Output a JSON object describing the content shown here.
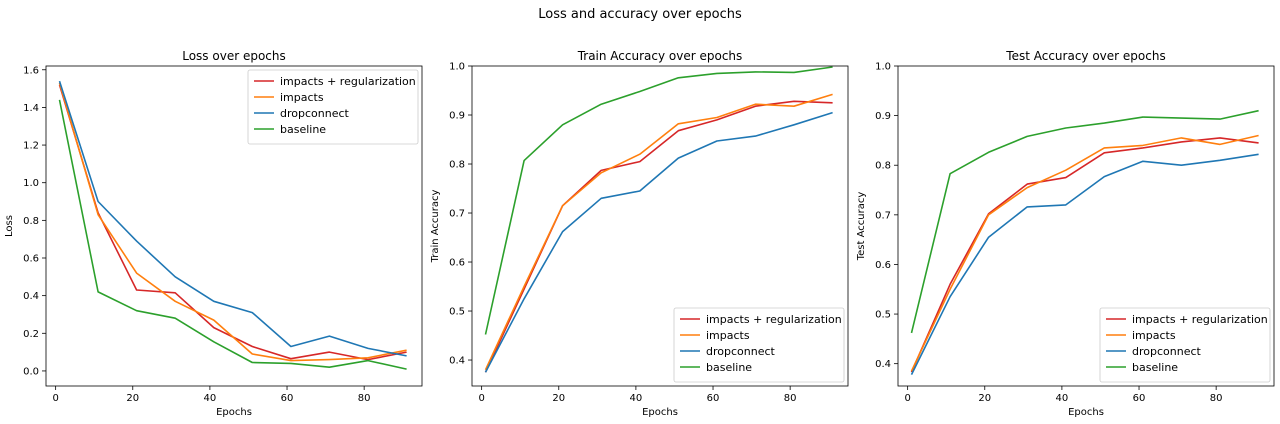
{
  "figure": {
    "suptitle": "Loss and accuracy over epochs"
  },
  "chart_data": [
    {
      "type": "line",
      "title": "Loss over epochs",
      "xlabel": "Epochs",
      "ylabel": "Loss",
      "xlim": [
        -2.5,
        95
      ],
      "ylim": [
        -0.08,
        1.62
      ],
      "xticks": [
        0,
        20,
        40,
        60,
        80
      ],
      "yticks": [
        0.0,
        0.2,
        0.4,
        0.6,
        0.8,
        1.0,
        1.2,
        1.4,
        1.6
      ],
      "x": [
        1,
        11,
        21,
        31,
        41,
        51,
        61,
        71,
        81,
        91
      ],
      "legend_loc": "top-right",
      "series": [
        {
          "name": "impacts + regularization",
          "color": "#d62728",
          "values": [
            1.52,
            0.84,
            0.43,
            0.415,
            0.23,
            0.13,
            0.065,
            0.1,
            0.06,
            0.1
          ]
        },
        {
          "name": "impacts",
          "color": "#ff7f0e",
          "values": [
            1.53,
            0.83,
            0.52,
            0.37,
            0.27,
            0.09,
            0.055,
            0.06,
            0.07,
            0.11
          ]
        },
        {
          "name": "dropconnect",
          "color": "#1f77b4",
          "values": [
            1.54,
            0.9,
            0.69,
            0.5,
            0.37,
            0.31,
            0.13,
            0.185,
            0.12,
            0.08
          ]
        },
        {
          "name": "baseline",
          "color": "#2ca02c",
          "values": [
            1.44,
            0.42,
            0.32,
            0.28,
            0.155,
            0.045,
            0.04,
            0.02,
            0.055,
            0.01
          ]
        }
      ]
    },
    {
      "type": "line",
      "title": "Train Accuracy over epochs",
      "xlabel": "Epochs",
      "ylabel": "Train Accuracy",
      "xlim": [
        -2.5,
        95
      ],
      "ylim": [
        0.347,
        1.0
      ],
      "xticks": [
        0,
        20,
        40,
        60,
        80
      ],
      "yticks": [
        0.4,
        0.5,
        0.6,
        0.7,
        0.8,
        0.9,
        1.0
      ],
      "x": [
        1,
        11,
        21,
        31,
        41,
        51,
        61,
        71,
        81,
        91
      ],
      "legend_loc": "bottom-right",
      "series": [
        {
          "name": "impacts + regularization",
          "color": "#d62728",
          "values": [
            0.375,
            0.545,
            0.715,
            0.787,
            0.805,
            0.868,
            0.89,
            0.918,
            0.928,
            0.925
          ]
        },
        {
          "name": "impacts",
          "color": "#ff7f0e",
          "values": [
            0.38,
            0.55,
            0.715,
            0.782,
            0.82,
            0.882,
            0.895,
            0.922,
            0.918,
            0.942
          ]
        },
        {
          "name": "dropconnect",
          "color": "#1f77b4",
          "values": [
            0.375,
            0.525,
            0.662,
            0.73,
            0.745,
            0.812,
            0.847,
            0.857,
            0.88,
            0.905
          ]
        },
        {
          "name": "baseline",
          "color": "#2ca02c",
          "values": [
            0.452,
            0.807,
            0.88,
            0.922,
            0.948,
            0.976,
            0.985,
            0.988,
            0.987,
            0.998
          ]
        }
      ]
    },
    {
      "type": "line",
      "title": "Test Accuracy over epochs",
      "xlabel": "Epochs",
      "ylabel": "Test Accuracy",
      "xlim": [
        -2.5,
        95
      ],
      "ylim": [
        0.355,
        1.0
      ],
      "xticks": [
        0,
        20,
        40,
        60,
        80
      ],
      "yticks": [
        0.4,
        0.5,
        0.6,
        0.7,
        0.8,
        0.9,
        1.0
      ],
      "x": [
        1,
        11,
        21,
        31,
        41,
        51,
        61,
        71,
        81,
        91
      ],
      "legend_loc": "bottom-right",
      "series": [
        {
          "name": "impacts + regularization",
          "color": "#d62728",
          "values": [
            0.383,
            0.56,
            0.702,
            0.762,
            0.775,
            0.825,
            0.835,
            0.847,
            0.855,
            0.845
          ]
        },
        {
          "name": "impacts",
          "color": "#ff7f0e",
          "values": [
            0.385,
            0.55,
            0.7,
            0.755,
            0.79,
            0.835,
            0.84,
            0.855,
            0.842,
            0.86
          ]
        },
        {
          "name": "dropconnect",
          "color": "#1f77b4",
          "values": [
            0.378,
            0.535,
            0.655,
            0.716,
            0.72,
            0.777,
            0.808,
            0.8,
            0.81,
            0.822
          ]
        },
        {
          "name": "baseline",
          "color": "#2ca02c",
          "values": [
            0.462,
            0.783,
            0.826,
            0.858,
            0.875,
            0.885,
            0.897,
            0.895,
            0.893,
            0.91
          ]
        }
      ]
    }
  ]
}
